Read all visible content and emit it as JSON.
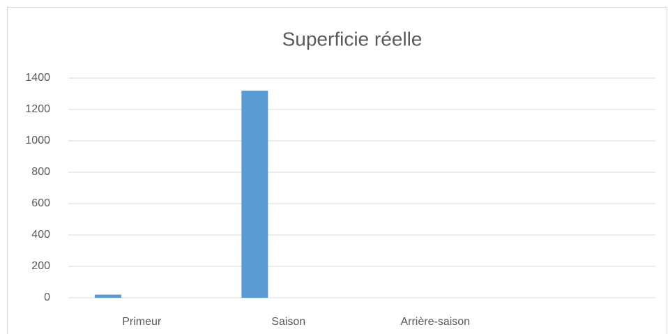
{
  "chart_data": {
    "type": "bar",
    "title": "Superficie réelle",
    "categories": [
      "Primeur",
      "Saison",
      "Arrière-saison",
      null
    ],
    "values": [
      20,
      1320,
      0,
      null
    ],
    "color": "#5b9bd5",
    "ylim": [
      0,
      1400
    ],
    "yticks": [
      0,
      200,
      400,
      600,
      800,
      1000,
      1200,
      1400
    ],
    "grid": true
  }
}
